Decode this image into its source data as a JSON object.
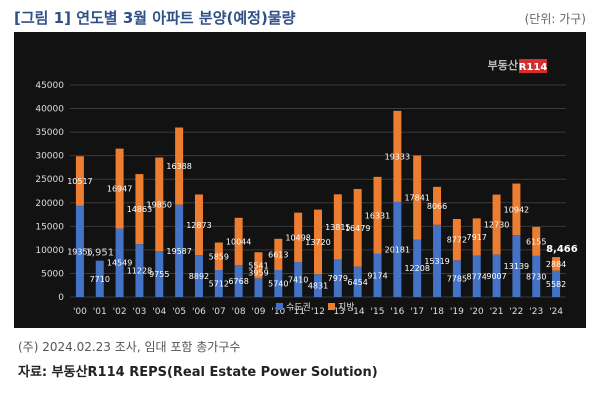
{
  "header": {
    "title": "[그림 1] 연도별 3월 아파트 분양(예정)물량",
    "unit": "(단위: 가구)"
  },
  "watermark": "부동산R114",
  "footer": {
    "note": "(주) 2024.02.23 조사, 임대 포함 총가구수",
    "source": "자료: 부동산R114 REPS(Real Estate Power Solution)"
  },
  "colors": {
    "background": "#121212",
    "series_capital": "#4472c4",
    "series_other": "#ed7d31",
    "title": "#2f4f87"
  },
  "chart_data": {
    "type": "bar",
    "stacked": true,
    "categories": [
      "'00",
      "'01",
      "'02",
      "'03",
      "'04",
      "'05",
      "'06",
      "'07",
      "'08",
      "'09",
      "'10",
      "'11",
      "'12",
      "'13",
      "'14",
      "'15",
      "'16",
      "'17",
      "'18",
      "'19",
      "'20",
      "'21",
      "'22",
      "'23",
      "'24"
    ],
    "series": [
      {
        "name": "수도권",
        "color": "#4472c4",
        "values": [
          19356,
          7710,
          14549,
          11228,
          9755,
          19587,
          8892,
          5712,
          6768,
          3959,
          5740,
          7410,
          4831,
          7979,
          6454,
          9174,
          20181,
          12208,
          15319,
          7785,
          8774,
          9007,
          13139,
          8730,
          5582
        ]
      },
      {
        "name": "지방",
        "color": "#ed7d31",
        "values": [
          10517,
          null,
          16947,
          14863,
          19850,
          16388,
          12873,
          5859,
          10044,
          5541,
          6613,
          10498,
          13720,
          13815,
          16479,
          16331,
          19333,
          17841,
          8066,
          8772,
          7917,
          12730,
          10942,
          6155,
          2884
        ]
      }
    ],
    "annotations": [
      {
        "category": "'01",
        "text": "1,951"
      },
      {
        "category": "'24",
        "text": "8,466"
      }
    ],
    "yticks": [
      0,
      5000,
      10000,
      15000,
      20000,
      25000,
      30000,
      35000,
      40000,
      45000
    ],
    "ylim": [
      0,
      45000
    ],
    "legend": [
      "수도권",
      "지방"
    ],
    "legend_position": "bottom",
    "grid": true
  }
}
